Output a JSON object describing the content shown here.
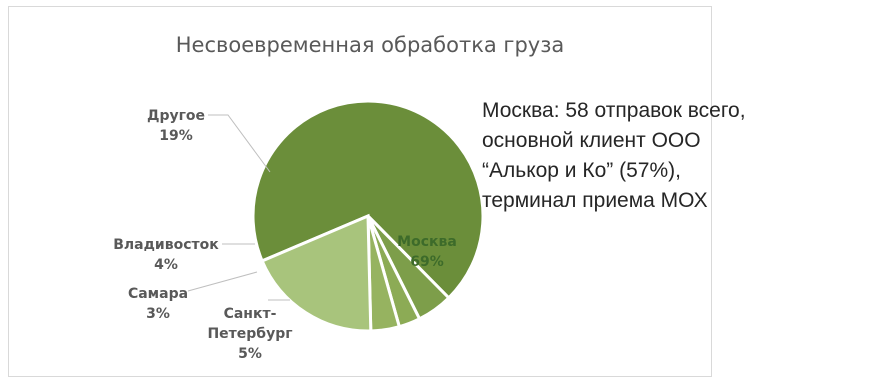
{
  "chart_data": {
    "type": "pie",
    "title": "Несвоевременная обработка груза",
    "slices": [
      {
        "label": "Москва",
        "value": 69,
        "value_label": "69%",
        "color": "#6b8e3a",
        "label_position": "inside"
      },
      {
        "label": "Санкт-Петербург",
        "label_lines": [
          "Санкт-",
          "Петербург"
        ],
        "value": 5,
        "value_label": "5%",
        "color": "#7d9e4a",
        "label_position": "outside"
      },
      {
        "label": "Самара",
        "value": 3,
        "value_label": "3%",
        "color": "#8cab55",
        "label_position": "outside"
      },
      {
        "label": "Владивосток",
        "value": 4,
        "value_label": "4%",
        "color": "#96b360",
        "label_position": "outside"
      },
      {
        "label": "Другое",
        "value": 19,
        "value_label": "19%",
        "color": "#a8c47c",
        "label_position": "outside"
      }
    ],
    "slice_border_color": "#ffffff"
  },
  "annotation": {
    "lines": [
      "Москва: 58 отправок всего,",
      "основной клиент ООО",
      "“Алькор и Ко” (57%),",
      "терминал приема МОХ"
    ]
  }
}
